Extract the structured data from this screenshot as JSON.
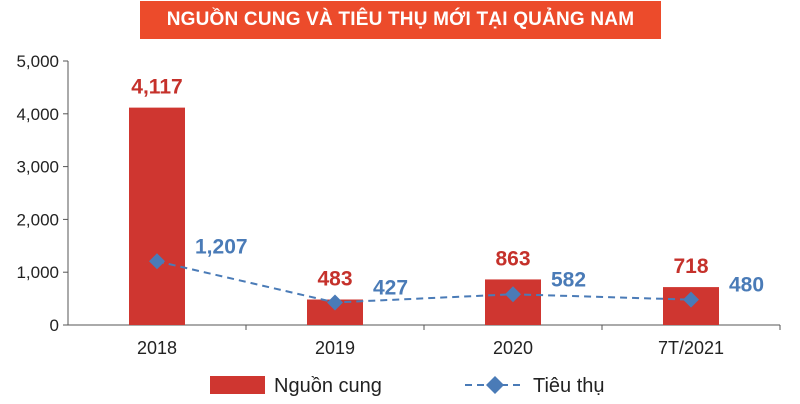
{
  "title": "NGUỒN CUNG VÀ TIÊU THỤ MỚI TẠI QUẢNG NAM",
  "colors": {
    "banner": "#ec4b2b",
    "bar": "#cf3630",
    "bar_label": "#c5312b",
    "line": "#4a7bb7",
    "line_label": "#4a7bb7",
    "axis": "#555555"
  },
  "chart_data": {
    "type": "bar",
    "title": "NGUỒN CUNG VÀ TIÊU THỤ MỚI TẠI QUẢNG NAM",
    "categories": [
      "2018",
      "2019",
      "2020",
      "7T/2021"
    ],
    "series": [
      {
        "name": "Nguồn cung",
        "type": "bar",
        "values": [
          4117,
          483,
          863,
          718
        ],
        "labels": [
          "4,117",
          "483",
          "863",
          "718"
        ]
      },
      {
        "name": "Tiêu thụ",
        "type": "line",
        "style": "dashed",
        "marker": "diamond",
        "values": [
          1207,
          427,
          582,
          480
        ],
        "labels": [
          "1,207",
          "427",
          "582",
          "480"
        ]
      }
    ],
    "ylim": [
      0,
      5000
    ],
    "yticks": [
      0,
      1000,
      2000,
      3000,
      4000,
      5000
    ],
    "ytick_labels": [
      "0",
      "1,000",
      "2,000",
      "3,000",
      "4,000",
      "5,000"
    ],
    "grid": false,
    "legend": "bottom"
  }
}
